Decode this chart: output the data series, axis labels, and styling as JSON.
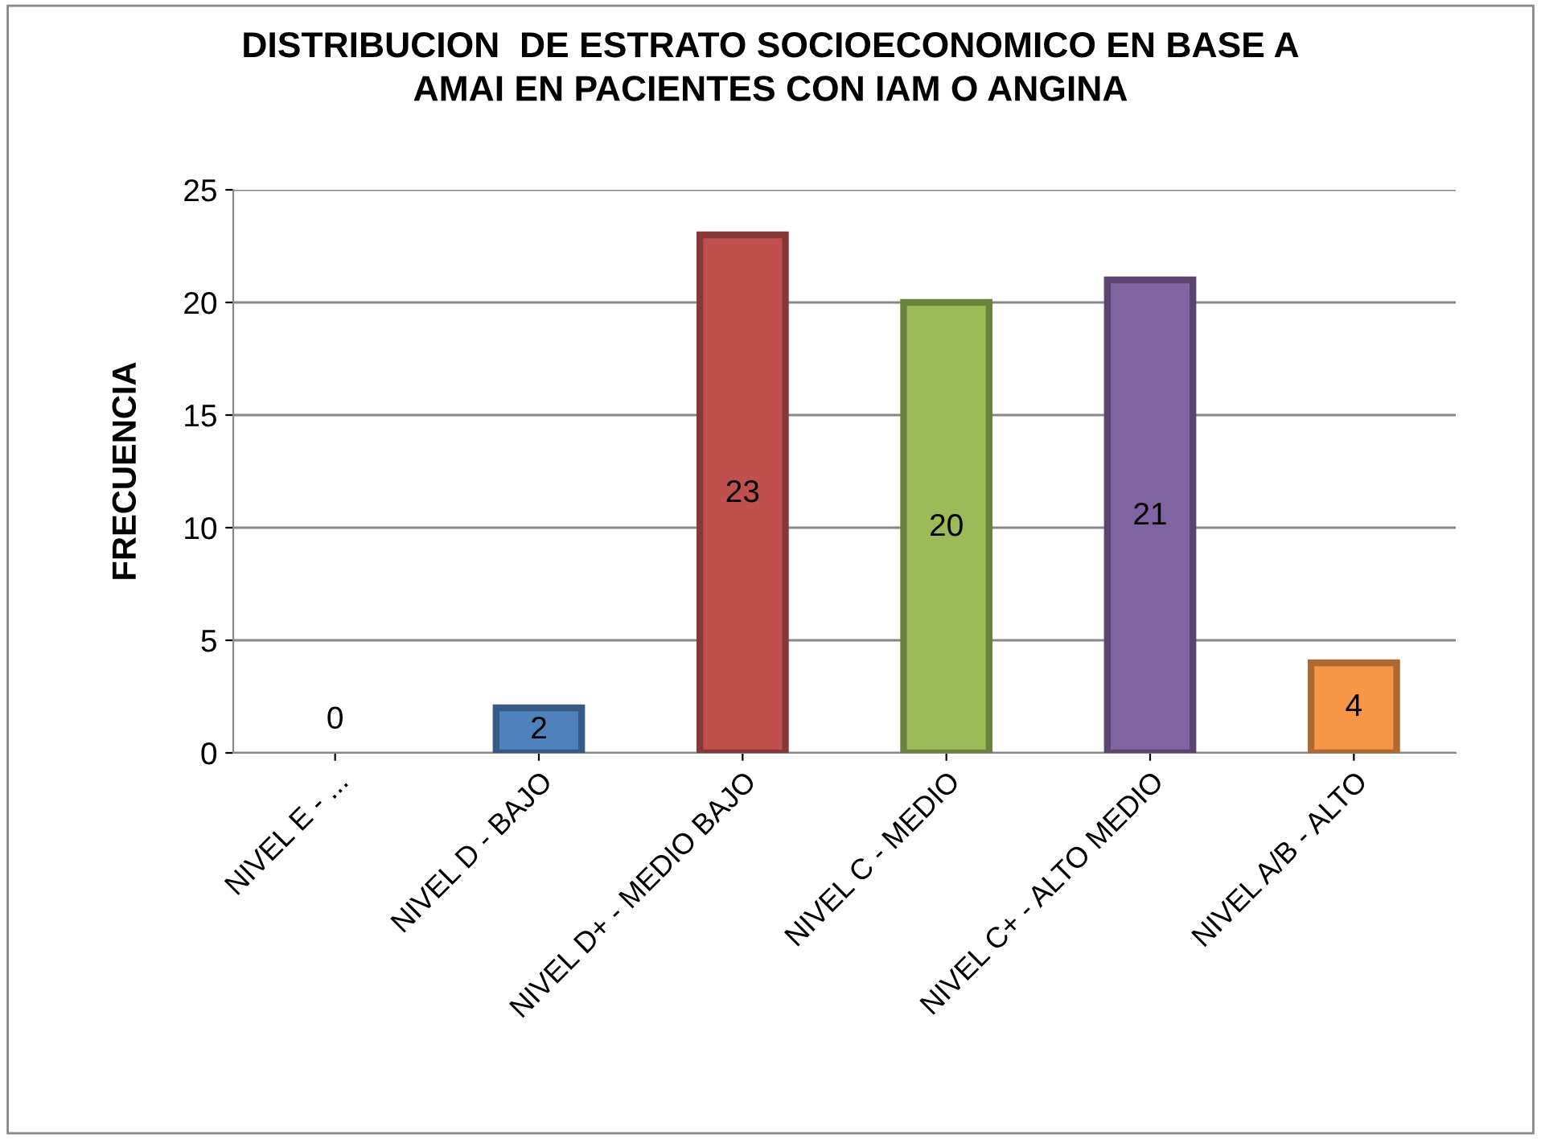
{
  "chart_data": {
    "type": "bar",
    "title": "DISTRIBUCION  DE ESTRATO SOCIOECONOMICO EN BASE A\nAMAI EN PACIENTES CON IAM O ANGINA",
    "ylabel": "FRECUENCIA",
    "categories": [
      "NIVEL E - ...",
      "NIVEL D - BAJO",
      "NIVEL D+ - MEDIO BAJO",
      "NIVEL C - MEDIO",
      "NIVEL C+ - ALTO MEDIO",
      "NIVEL A/B - ALTO"
    ],
    "values": [
      0,
      2,
      23,
      20,
      21,
      4
    ],
    "colors": [
      "#4f81bd",
      "#4f81bd",
      "#c0504d",
      "#9bbb59",
      "#8064a2",
      "#f79646"
    ],
    "ylim": [
      0,
      25
    ],
    "yticks": [
      0,
      5,
      10,
      15,
      20,
      25
    ],
    "grid": "y",
    "data_labels": true,
    "legend": false
  }
}
